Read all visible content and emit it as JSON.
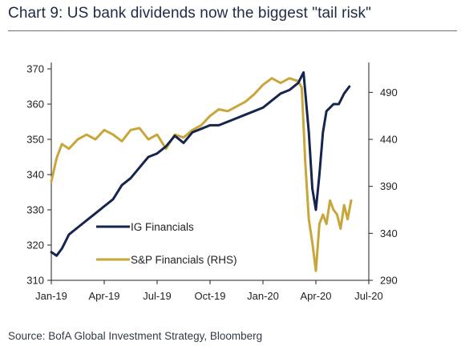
{
  "header": {
    "title": "Chart 9: US bank dividends now the biggest \"tail risk\""
  },
  "footer": {
    "source": "Source: BofA Global Investment Strategy, Bloomberg"
  },
  "colors": {
    "ig": "#16254f",
    "sp": "#c9a63b",
    "axis": "#222222"
  },
  "chart_data": {
    "type": "line",
    "title": "Chart 9: US bank dividends now the biggest \"tail risk\"",
    "legend_placement": "bottom-left inside plot",
    "grid": false,
    "x_ticks": [
      "Jan-19",
      "Apr-19",
      "Jul-19",
      "Oct-19",
      "Jan-20",
      "Apr-20",
      "Jul-20"
    ],
    "x_range": [
      0,
      18
    ],
    "y_left": {
      "range": [
        310,
        370
      ],
      "ticks": [
        "310",
        "320",
        "330",
        "340",
        "350",
        "360",
        "370"
      ]
    },
    "y_right": {
      "range": [
        290,
        515
      ],
      "ticks": [
        "290",
        "340",
        "390",
        "440",
        "490"
      ]
    },
    "series": [
      {
        "name": "IG Financials",
        "axis": "left",
        "x": [
          0,
          0.3,
          0.6,
          1.0,
          1.5,
          2.0,
          2.5,
          3.0,
          3.5,
          4.0,
          4.5,
          5.0,
          5.5,
          6.0,
          6.5,
          7.0,
          7.5,
          8.0,
          8.5,
          9.0,
          9.5,
          10.0,
          10.5,
          11.0,
          11.5,
          12.0,
          12.5,
          13.0,
          13.5,
          14.0,
          14.3,
          14.6,
          14.8,
          15.0,
          15.2,
          15.4,
          15.6,
          15.8,
          16.0,
          16.3,
          16.6,
          16.9
        ],
        "values": [
          318,
          317,
          319,
          323,
          325,
          327,
          329,
          331,
          333,
          337,
          339,
          342,
          345,
          346,
          348,
          351,
          349,
          352,
          353,
          354,
          354,
          355,
          356,
          357,
          358,
          359,
          361,
          363,
          364,
          366,
          369,
          352,
          336,
          330,
          340,
          352,
          358,
          359,
          360,
          360,
          363,
          365
        ]
      },
      {
        "name": "S&P Financials (RHS)",
        "axis": "right",
        "x": [
          0,
          0.3,
          0.6,
          1.0,
          1.5,
          2.0,
          2.5,
          3.0,
          3.5,
          4.0,
          4.5,
          5.0,
          5.5,
          6.0,
          6.5,
          7.0,
          7.5,
          8.0,
          8.5,
          9.0,
          9.5,
          10.0,
          10.5,
          11.0,
          11.5,
          12.0,
          12.5,
          13.0,
          13.5,
          14.0,
          14.2,
          14.4,
          14.6,
          14.8,
          15.0,
          15.2,
          15.4,
          15.6,
          15.8,
          16.0,
          16.2,
          16.4,
          16.6,
          16.8,
          17.0
        ],
        "values": [
          395,
          420,
          435,
          430,
          440,
          445,
          440,
          450,
          445,
          438,
          450,
          452,
          440,
          445,
          430,
          445,
          442,
          450,
          455,
          465,
          472,
          470,
          475,
          480,
          488,
          498,
          505,
          500,
          505,
          502,
          495,
          415,
          355,
          330,
          300,
          350,
          360,
          350,
          375,
          365,
          360,
          345,
          370,
          355,
          375
        ]
      }
    ]
  }
}
